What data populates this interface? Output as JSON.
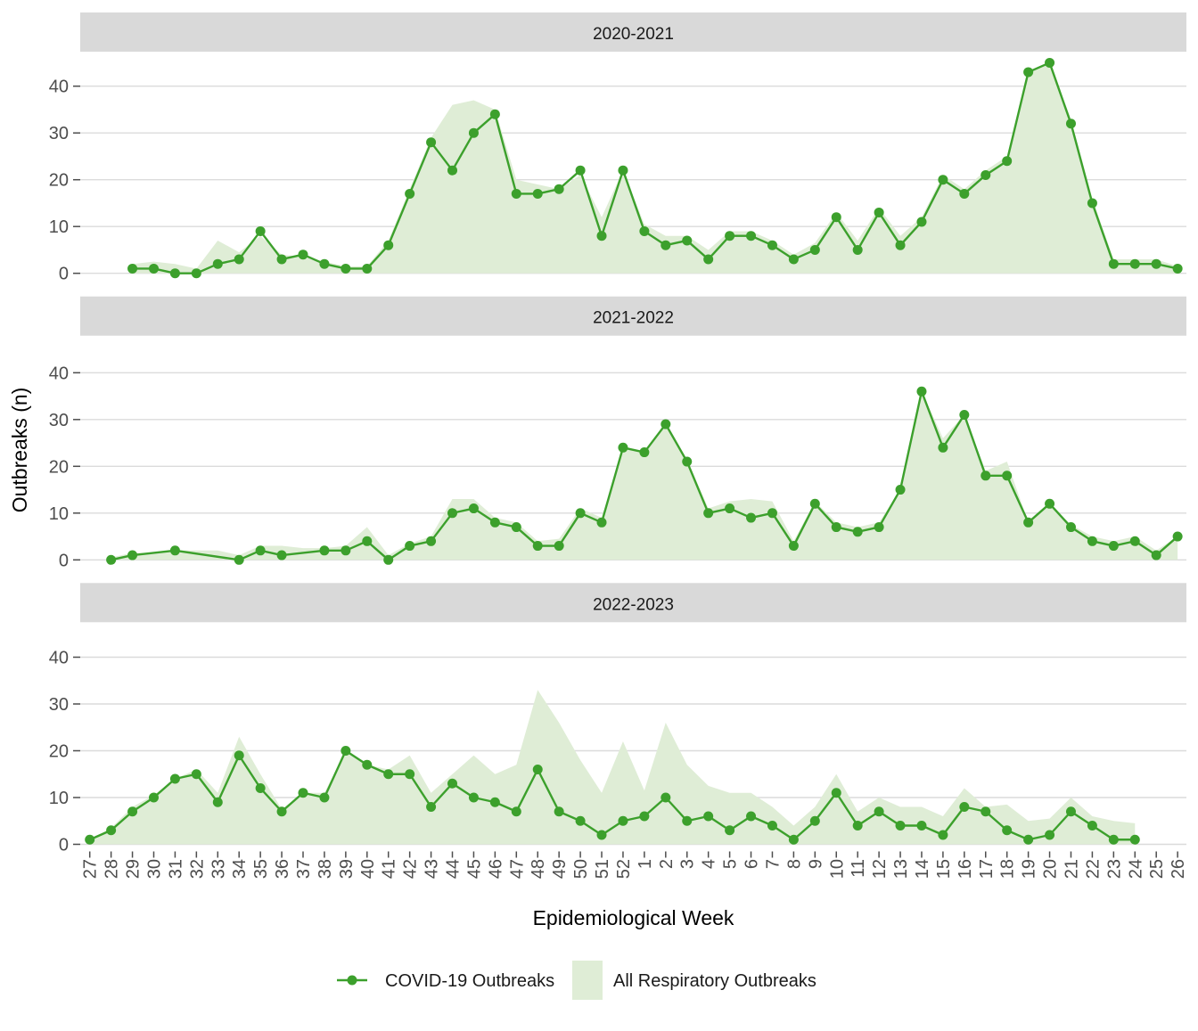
{
  "y_axis": {
    "title": "Outbreaks (n)",
    "ticks": [
      "0",
      "10",
      "20",
      "30",
      "40"
    ]
  },
  "x_axis": {
    "title": "Epidemiological Week"
  },
  "legend": {
    "position": "bottom",
    "items": [
      "COVID-19 Outbreaks",
      "All Respiratory Outbreaks"
    ]
  },
  "colors": {
    "line": "#3CA02C",
    "area": "#DFEDD6",
    "strip_bg": "#D9D9D9",
    "grid": "#DBDBDB",
    "tick_text": "#4D4D4D",
    "text": "#1A1A1A",
    "axis_title": "#000000"
  },
  "chart_data": {
    "type": "line",
    "layout": "3 vertically stacked facets sharing x-axis",
    "xlabel": "Epidemiological Week",
    "ylabel": "Outbreaks (n)",
    "ylim": [
      0,
      46
    ],
    "yticks": [
      0,
      10,
      20,
      30,
      40
    ],
    "grid": "horizontal major gridlines only",
    "legend_position": "bottom",
    "x_categories": [
      "27",
      "28",
      "29",
      "30",
      "31",
      "32",
      "33",
      "34",
      "35",
      "36",
      "37",
      "38",
      "39",
      "40",
      "41",
      "42",
      "43",
      "44",
      "45",
      "46",
      "47",
      "48",
      "49",
      "50",
      "51",
      "52",
      "1",
      "2",
      "3",
      "4",
      "5",
      "6",
      "7",
      "8",
      "9",
      "10",
      "11",
      "12",
      "13",
      "14",
      "15",
      "16",
      "17",
      "18",
      "19",
      "20",
      "21",
      "22",
      "23",
      "24",
      "25",
      "26"
    ],
    "facets": [
      {
        "title": "2020-2021",
        "series": [
          {
            "name": "COVID-19 Outbreaks",
            "type": "line+points",
            "values": [
              null,
              null,
              1,
              1,
              0,
              0,
              2,
              3,
              9,
              3,
              4,
              2,
              1,
              1,
              6,
              17,
              28,
              22,
              30,
              34,
              17,
              17,
              18,
              22,
              8,
              22,
              9,
              6,
              7,
              3,
              8,
              8,
              6,
              3,
              5,
              12,
              5,
              13,
              6,
              11,
              20,
              17,
              21,
              24,
              43,
              45,
              32,
              15,
              2,
              2,
              2,
              1
            ]
          },
          {
            "name": "All Respiratory Outbreaks",
            "type": "area",
            "values": [
              null,
              null,
              2,
              2.5,
              2,
              1,
              7,
              4.5,
              8,
              4,
              3.5,
              2.5,
              1.5,
              1.5,
              7,
              18,
              29,
              36,
              37,
              35,
              20,
              19,
              18,
              21,
              12,
              22,
              10.5,
              8,
              8,
              5,
              9,
              9,
              7,
              4,
              6.5,
              13,
              7,
              14,
              8,
              12,
              21,
              18,
              22,
              25,
              43,
              45,
              33,
              16,
              3,
              3,
              3,
              1.5
            ]
          }
        ]
      },
      {
        "title": "2021-2022",
        "series": [
          {
            "name": "COVID-19 Outbreaks",
            "type": "line+points",
            "values": [
              null,
              0,
              1,
              null,
              2,
              null,
              null,
              0,
              2,
              1,
              null,
              2,
              2,
              4,
              0,
              3,
              4,
              10,
              11,
              8,
              7,
              3,
              3,
              10,
              8,
              24,
              23,
              29,
              21,
              10,
              11,
              9,
              10,
              3,
              12,
              7,
              6,
              7,
              15,
              36,
              24,
              31,
              18,
              18,
              8,
              12,
              7,
              4,
              3,
              4,
              1,
              5
            ]
          },
          {
            "name": "All Respiratory Outbreaks",
            "type": "area",
            "values": [
              null,
              0.5,
              1.5,
              1.5,
              2,
              2,
              2,
              1,
              3,
              3,
              2.5,
              2.5,
              3,
              7,
              1,
              3.5,
              5,
              13,
              13,
              9,
              8,
              4,
              4.5,
              11,
              9,
              24,
              23,
              29,
              21.5,
              11,
              12.5,
              13,
              12.5,
              4,
              12.5,
              8,
              7,
              8,
              15,
              36,
              26,
              31,
              19,
              21,
              8,
              12,
              7.5,
              5,
              4,
              5,
              2,
              5
            ]
          }
        ]
      },
      {
        "title": "2022-2023",
        "series": [
          {
            "name": "COVID-19 Outbreaks",
            "type": "line+points",
            "values": [
              1,
              3,
              7,
              10,
              14,
              15,
              9,
              19,
              12,
              7,
              11,
              10,
              20,
              17,
              15,
              15,
              8,
              13,
              10,
              9,
              7,
              16,
              7,
              5,
              2,
              5,
              6,
              10,
              5,
              6,
              3,
              6,
              4,
              1,
              5,
              11,
              4,
              7,
              4,
              4,
              2,
              8,
              7,
              3,
              1,
              2,
              7,
              4,
              1,
              1,
              null,
              null
            ]
          },
          {
            "name": "All Respiratory Outbreaks",
            "type": "area",
            "values": [
              1,
              3.5,
              8,
              10.5,
              14,
              16,
              11,
              23,
              15,
              7.5,
              11,
              11,
              20,
              17,
              16,
              19,
              11,
              15,
              19,
              15,
              17,
              33,
              26,
              18,
              11,
              22,
              11.5,
              26,
              17,
              12.5,
              11,
              11,
              8,
              4,
              8,
              15,
              7,
              10,
              8,
              8,
              6,
              12,
              8,
              8.5,
              5,
              5.5,
              10,
              6,
              5,
              4.5,
              null,
              null
            ]
          }
        ]
      }
    ]
  }
}
